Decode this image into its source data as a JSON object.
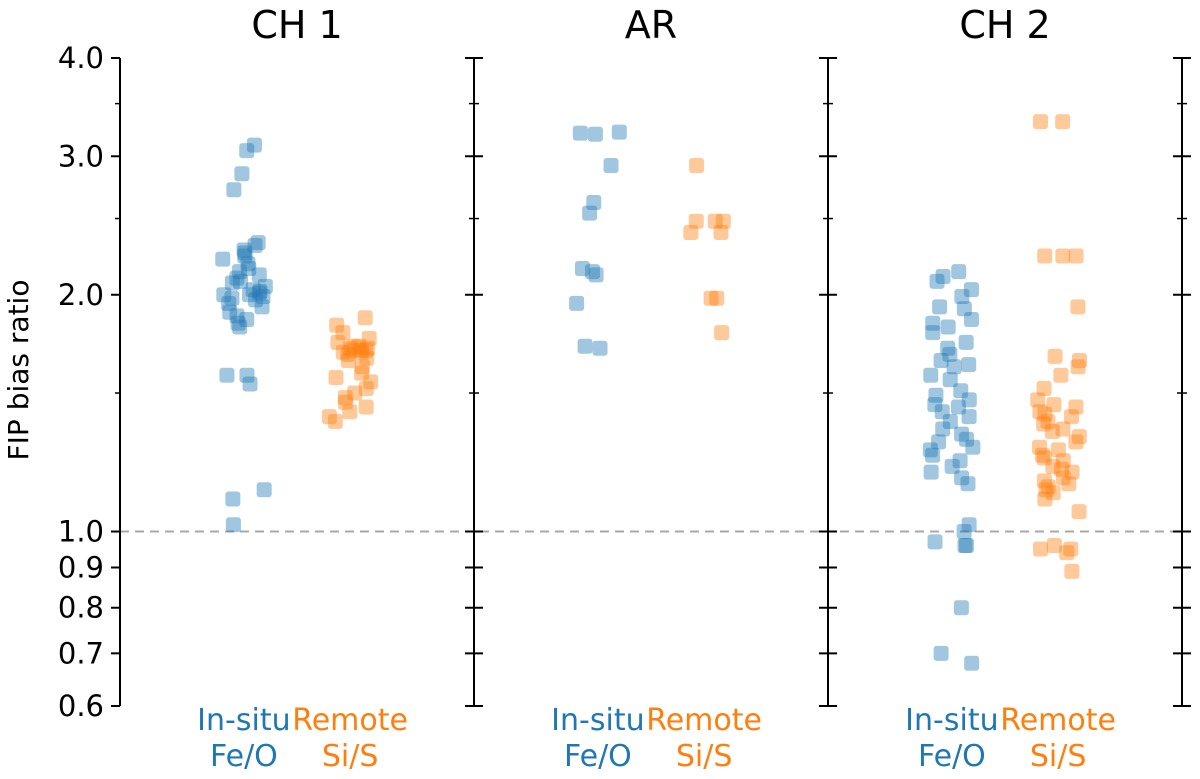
{
  "chart_data": {
    "type": "scatter",
    "ylabel": "FIP bias ratio",
    "yscale": "log",
    "ylim": [
      0.6,
      4.0
    ],
    "yticks": [
      "0.6",
      "0.7",
      "0.8",
      "0.9",
      "1.0",
      "2.0",
      "3.0",
      "4.0"
    ],
    "reference_line": 1.0,
    "series_styles": {
      "insitu": {
        "color": "#1f77b4",
        "label": [
          "In-situ",
          "Fe/O"
        ]
      },
      "remote": {
        "color": "#ff7f0e",
        "label": [
          "Remote",
          "Si/S"
        ]
      }
    },
    "panels": [
      {
        "title": "CH 1",
        "insitu": [
          3.1,
          3.05,
          2.85,
          2.72,
          2.33,
          2.31,
          2.28,
          2.26,
          2.24,
          2.22,
          2.19,
          2.16,
          2.14,
          2.12,
          2.1,
          2.08,
          2.07,
          2.05,
          2.03,
          2.02,
          2.01,
          2.0,
          2.0,
          1.99,
          1.98,
          1.97,
          1.95,
          1.93,
          1.9,
          1.88,
          1.86,
          1.84,
          1.82,
          1.58,
          1.58,
          1.54,
          1.13,
          1.1,
          1.02
        ],
        "remote": [
          1.87,
          1.83,
          1.79,
          1.76,
          1.74,
          1.72,
          1.72,
          1.71,
          1.71,
          1.7,
          1.7,
          1.7,
          1.69,
          1.69,
          1.68,
          1.66,
          1.65,
          1.62,
          1.59,
          1.57,
          1.55,
          1.52,
          1.5,
          1.48,
          1.46,
          1.44,
          1.42,
          1.4,
          1.38
        ]
      },
      {
        "title": "AR",
        "insitu": [
          3.22,
          3.21,
          3.2,
          2.92,
          2.62,
          2.54,
          2.16,
          2.14,
          2.12,
          1.95,
          1.72,
          1.71
        ],
        "remote": [
          2.92,
          2.48,
          2.48,
          2.48,
          2.4,
          2.4,
          1.98,
          1.98,
          1.79
        ]
      },
      {
        "title": "CH 2",
        "insitu": [
          2.14,
          2.11,
          2.08,
          2.03,
          1.99,
          1.93,
          1.92,
          1.86,
          1.84,
          1.82,
          1.79,
          1.74,
          1.71,
          1.68,
          1.65,
          1.63,
          1.62,
          1.58,
          1.56,
          1.51,
          1.49,
          1.47,
          1.45,
          1.44,
          1.42,
          1.4,
          1.38,
          1.35,
          1.33,
          1.31,
          1.3,
          1.28,
          1.27,
          1.25,
          1.23,
          1.21,
          1.19,
          1.17,
          1.15,
          1.02,
          1.0,
          0.97,
          0.96,
          0.96,
          0.8,
          0.7,
          0.68
        ],
        "remote": [
          3.32,
          3.32,
          2.24,
          2.24,
          2.24,
          1.93,
          1.67,
          1.65,
          1.62,
          1.58,
          1.52,
          1.47,
          1.45,
          1.44,
          1.42,
          1.41,
          1.4,
          1.38,
          1.37,
          1.35,
          1.34,
          1.32,
          1.3,
          1.28,
          1.27,
          1.25,
          1.24,
          1.23,
          1.21,
          1.2,
          1.19,
          1.17,
          1.16,
          1.15,
          1.14,
          1.13,
          1.12,
          1.1,
          1.06,
          0.96,
          0.95,
          0.95,
          0.94,
          0.89
        ]
      }
    ]
  }
}
